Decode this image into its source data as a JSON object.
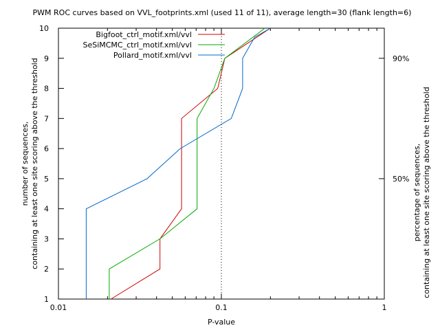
{
  "chart_data": {
    "type": "line",
    "title": "PWM ROC curves based on VVL_footprints.xml (used 11 of 11), average length=30 (flank length=6)",
    "xlabel": "P-value",
    "ylabel_line1": "number of sequences,",
    "ylabel_line2": "containing at least one site scoring above the threshold",
    "y2label_line1": "percentage of sequences,",
    "y2label_line2": "containing at least one site scoring above the threshold",
    "x_scale": "log",
    "xlim": [
      0.01,
      1
    ],
    "ylim": [
      1,
      10
    ],
    "x_ticks": [
      {
        "value": 0.01,
        "label": "0.01"
      },
      {
        "value": 0.1,
        "label": "0.1"
      },
      {
        "value": 1,
        "label": "1"
      }
    ],
    "y_ticks": [
      {
        "value": 1,
        "label": "1"
      },
      {
        "value": 2,
        "label": "2"
      },
      {
        "value": 3,
        "label": "3"
      },
      {
        "value": 4,
        "label": "4"
      },
      {
        "value": 5,
        "label": "5"
      },
      {
        "value": 6,
        "label": "6"
      },
      {
        "value": 7,
        "label": "7"
      },
      {
        "value": 8,
        "label": "8"
      },
      {
        "value": 9,
        "label": "9"
      },
      {
        "value": 10,
        "label": "10"
      }
    ],
    "y2_ticks": [
      {
        "value": 5,
        "label": "50%"
      },
      {
        "value": 9,
        "label": "90%"
      }
    ],
    "grid": "dotted at x=0.1",
    "legend_position": "top-left",
    "series": [
      {
        "name": "Bigfoot_ctrl_motif.xml/vvl",
        "color": "#cc0000",
        "points": [
          [
            0.021,
            1
          ],
          [
            0.042,
            2
          ],
          [
            0.042,
            3
          ],
          [
            0.057,
            4
          ],
          [
            0.057,
            7
          ],
          [
            0.095,
            8
          ],
          [
            0.105,
            9
          ],
          [
            0.2,
            10
          ]
        ]
      },
      {
        "name": "SeSiMCMC_ctrl_motif.xml/vvl",
        "color": "#00aa00",
        "points": [
          [
            0.0205,
            1
          ],
          [
            0.0205,
            2
          ],
          [
            0.042,
            3
          ],
          [
            0.071,
            4
          ],
          [
            0.071,
            7
          ],
          [
            0.09,
            8
          ],
          [
            0.105,
            9
          ],
          [
            0.185,
            10
          ]
        ]
      },
      {
        "name": "Pollard_motif.xml/vvl",
        "color": "#0066cc",
        "points": [
          [
            0.0148,
            1
          ],
          [
            0.0148,
            4
          ],
          [
            0.035,
            5
          ],
          [
            0.056,
            6
          ],
          [
            0.115,
            7
          ],
          [
            0.135,
            8
          ],
          [
            0.135,
            9
          ],
          [
            0.16,
            9.7
          ],
          [
            0.2,
            10
          ]
        ]
      }
    ]
  }
}
